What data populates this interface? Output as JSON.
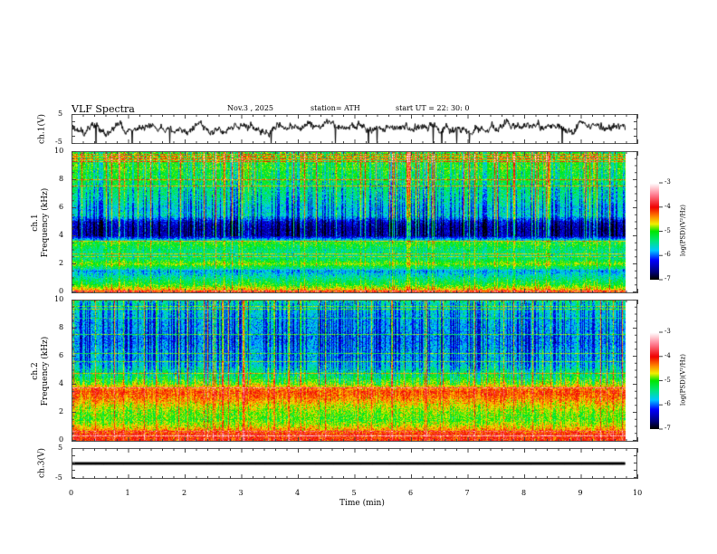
{
  "header": {
    "title": "VLF  Spectra",
    "date": "Nov.3  , 2025",
    "station": "station= ATH",
    "start_ut": "start  UT  =    22: 30: 0"
  },
  "chart_data": [
    {
      "type": "line",
      "name": "ch1 waveform",
      "ylabel": "ch.1(V)",
      "ylim": [
        -5,
        5
      ],
      "yticks": [
        "5",
        "-5"
      ],
      "xlim": [
        0,
        9.8
      ],
      "description_stats": {
        "mean": 0.3,
        "amplitude": 3
      }
    },
    {
      "type": "heatmap",
      "name": "ch1 spectrogram",
      "ylabel": "ch.1\nFrequency  (kHz)",
      "ylabel_top": "ch.1",
      "ylabel_bottom": "Frequency  (kHz)",
      "ylim": [
        0,
        10
      ],
      "yticks": [
        "0",
        "2",
        "4",
        "6",
        "8",
        "10"
      ],
      "xlim": [
        0,
        9.8
      ],
      "freq_kHz": [
        0,
        0.5,
        1,
        1.5,
        2,
        2.5,
        3,
        3.5,
        4,
        4.5,
        5,
        5.5,
        6,
        6.5,
        7,
        7.5,
        8,
        8.5,
        9,
        9.5,
        10
      ],
      "mean_log_psd": [
        -4.2,
        -5.0,
        -5.4,
        -5.8,
        -4.8,
        -5.4,
        -5.3,
        -5.0,
        -6.4,
        -6.5,
        -6.3,
        -5.6,
        -5.7,
        -5.5,
        -5.4,
        -5.3,
        -5.1,
        -5.1,
        -5.0,
        -5.0,
        -5.0
      ],
      "colorbar": {
        "label": "log(PSD)(V²/Hz)",
        "range": [
          -7,
          -3
        ],
        "ticks": [
          "-3",
          "-4",
          "-5",
          "-6",
          "-7"
        ]
      }
    },
    {
      "type": "heatmap",
      "name": "ch2 spectrogram",
      "ylabel_top": "ch.2",
      "ylabel_bottom": "Frequency  (kHz)",
      "ylim": [
        0,
        10
      ],
      "yticks": [
        "0",
        "2",
        "4",
        "6",
        "8",
        "10"
      ],
      "xlim": [
        0,
        9.8
      ],
      "freq_kHz": [
        0,
        0.5,
        1,
        1.5,
        2,
        2.5,
        3,
        3.5,
        4,
        4.5,
        5,
        5.5,
        6,
        6.5,
        7,
        7.5,
        8,
        8.5,
        9,
        9.5,
        10
      ],
      "mean_log_psd": [
        -4.0,
        -4.1,
        -4.6,
        -4.9,
        -4.8,
        -4.6,
        -4.3,
        -4.1,
        -4.7,
        -5.1,
        -5.4,
        -5.7,
        -5.8,
        -5.8,
        -5.9,
        -5.9,
        -5.8,
        -5.8,
        -5.7,
        -5.6,
        -5.5
      ],
      "colorbar": {
        "label": "log(PSD)(V²/Hz)",
        "range": [
          -7,
          -3
        ],
        "ticks": [
          "-3",
          "-4",
          "-5",
          "-6",
          "-7"
        ]
      }
    },
    {
      "type": "line",
      "name": "ch3 waveform",
      "ylabel": "ch.3(V)",
      "ylim": [
        -5,
        5
      ],
      "yticks": [
        "5",
        "-5"
      ],
      "xlim": [
        0,
        9.8
      ],
      "description_stats": {
        "mean": 0.0,
        "amplitude": 0.2
      }
    }
  ],
  "xaxis": {
    "label": "Time  (min)",
    "range": [
      0,
      10
    ],
    "ticks": [
      "0",
      "1",
      "2",
      "3",
      "4",
      "5",
      "6",
      "7",
      "8",
      "9",
      "10"
    ]
  }
}
